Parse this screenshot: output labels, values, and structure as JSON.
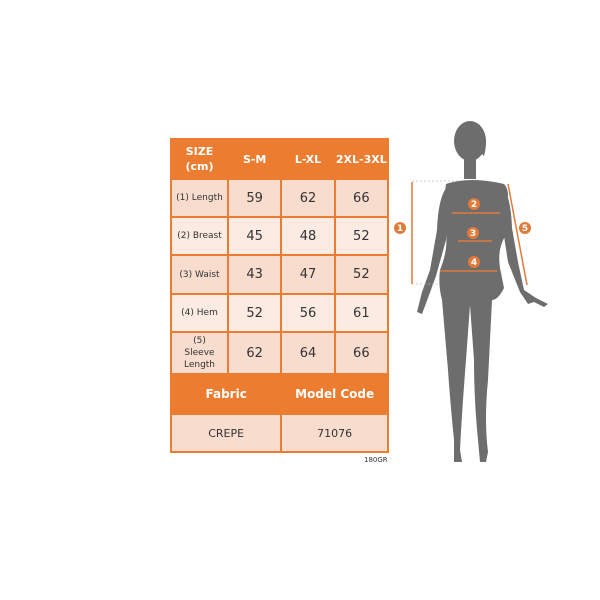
{
  "table": {
    "header": [
      "SIZE (cm)",
      "S-M",
      "L-XL",
      "2XL-3XL"
    ],
    "rows": [
      {
        "label": "(1) Length",
        "values": [
          "59",
          "62",
          "66"
        ]
      },
      {
        "label": "(2) Breast",
        "values": [
          "45",
          "48",
          "52"
        ]
      },
      {
        "label": "(3) Waist",
        "values": [
          "43",
          "47",
          "52"
        ]
      },
      {
        "label": "(4) Hem",
        "values": [
          "52",
          "56",
          "61"
        ]
      },
      {
        "label": "(5) Sleeve Length",
        "values": [
          "62",
          "64",
          "66"
        ]
      }
    ],
    "footer_header": [
      "Fabric",
      "Model Code"
    ],
    "footer_values": [
      "CREPE",
      "71076"
    ]
  },
  "weight_note": "180GR",
  "figure": {
    "markers": [
      "1",
      "2",
      "3",
      "4",
      "5"
    ]
  },
  "colors": {
    "accent": "#ec7c30",
    "silhouette": "#6d6d6d"
  }
}
